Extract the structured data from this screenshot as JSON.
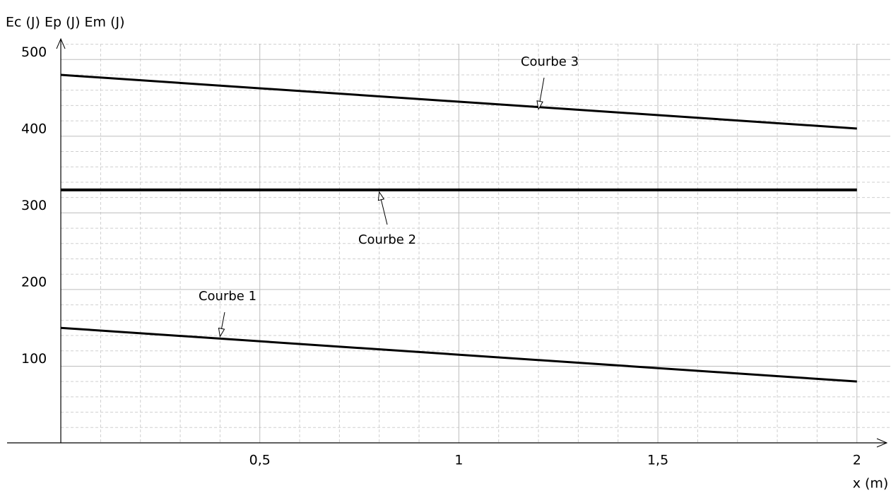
{
  "chart_data": {
    "type": "line",
    "y_label": "Ec (J)  Ep (J)  Em (J)",
    "x_label": "x (m)",
    "xlim": [
      -0.135,
      2.075
    ],
    "ylim": [
      0,
      527
    ],
    "xticks": [
      {
        "value": 0.5,
        "label": "0,5"
      },
      1,
      {
        "value": 1.5,
        "label": "1,5"
      },
      2
    ],
    "yticks": [
      100,
      200,
      300,
      400,
      500
    ],
    "xminorticks": [
      0.1,
      0.2,
      0.3,
      0.4,
      0.6,
      0.7,
      0.8,
      0.9,
      1.1,
      1.2,
      1.3,
      1.4,
      1.6,
      1.7,
      1.8,
      1.9
    ],
    "yminorticks": [
      20,
      40,
      60,
      80,
      120,
      140,
      160,
      180,
      220,
      240,
      260,
      280,
      320,
      340,
      360,
      380,
      420,
      440,
      460,
      480,
      520
    ],
    "grid": true,
    "series": [
      {
        "name": "Courbe 1",
        "color": "#000000",
        "x": [
          0,
          2
        ],
        "values": [
          150,
          80
        ]
      },
      {
        "name": "Courbe 2",
        "color": "#000000",
        "x": [
          0,
          2
        ],
        "values": [
          330,
          330
        ]
      },
      {
        "name": "Courbe 3",
        "color": "#000000",
        "x": [
          0,
          2
        ],
        "values": [
          480,
          410
        ]
      }
    ]
  }
}
